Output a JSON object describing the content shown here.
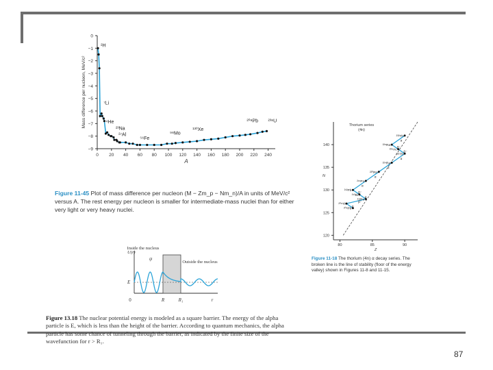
{
  "page_number": "87",
  "chart_data": [
    {
      "type": "scatter",
      "ylabel": "Mass difference per nucleon, MeV/c²",
      "xlabel": "A",
      "x_ticks": [
        "0",
        "20",
        "40",
        "60",
        "80",
        "100",
        "120",
        "140",
        "160",
        "180",
        "200",
        "220",
        "240"
      ],
      "y_ticks": [
        "0",
        "−1",
        "−2",
        "−3",
        "−4",
        "−5",
        "−6",
        "−7",
        "−8",
        "−9"
      ],
      "xlim": [
        0,
        250
      ],
      "ylim": [
        -9,
        0
      ],
      "x": [
        1,
        2,
        3,
        4,
        6,
        7,
        9,
        10,
        12,
        14,
        16,
        19,
        20,
        23,
        24,
        27,
        28,
        31,
        32,
        40,
        45,
        50,
        56,
        60,
        70,
        80,
        90,
        98,
        105,
        110,
        120,
        130,
        140,
        150,
        160,
        170,
        180,
        190,
        200,
        208,
        215,
        225,
        232,
        238
      ],
      "y": [
        -1.0,
        -1.5,
        -2.6,
        -6.4,
        -6.2,
        -6.4,
        -6.6,
        -6.8,
        -7.8,
        -7.7,
        -7.9,
        -8.0,
        -8.0,
        -8.1,
        -8.3,
        -8.3,
        -8.4,
        -8.5,
        -8.5,
        -8.5,
        -8.6,
        -8.6,
        -8.7,
        -8.7,
        -8.7,
        -8.7,
        -8.7,
        -8.6,
        -8.6,
        -8.55,
        -8.5,
        -8.45,
        -8.4,
        -8.3,
        -8.25,
        -8.2,
        -8.1,
        -8.0,
        -7.95,
        -7.9,
        -7.85,
        -7.75,
        -7.65,
        -7.6
      ],
      "annotations": [
        {
          "text": "²H",
          "x": 3,
          "y": -1.0
        },
        {
          "text": "⁷Li",
          "x": 7,
          "y": -5.6
        },
        {
          "text": "⁴He",
          "x": 10,
          "y": -7.1
        },
        {
          "text": "²³Na",
          "x": 24,
          "y": -7.6
        },
        {
          "text": "²⁷Al",
          "x": 28,
          "y": -8.1
        },
        {
          "text": "⁵⁶Fe",
          "x": 58,
          "y": -8.4
        },
        {
          "text": "⁹⁸Mo",
          "x": 100,
          "y": -8.0
        },
        {
          "text": "¹³⁰Xe",
          "x": 132,
          "y": -7.7
        },
        {
          "text": "²⁰⁸Pb",
          "x": 208,
          "y": -7.0
        },
        {
          "text": "²³⁸U",
          "x": 238,
          "y": -7.0
        }
      ]
    },
    {
      "type": "line",
      "title": "Thorium series",
      "subtitle": "(4n)",
      "xlabel": "Z",
      "ylabel": "N",
      "x_ticks": [
        "80",
        "85",
        "90"
      ],
      "y_ticks": [
        "120",
        "125",
        "130",
        "135",
        "140"
      ],
      "xlim": [
        79,
        92
      ],
      "ylim": [
        119,
        145
      ],
      "x": [
        90,
        88,
        89,
        90,
        88,
        86,
        84,
        82,
        83,
        84,
        81,
        82
      ],
      "y": [
        142,
        140,
        139,
        138,
        136,
        134,
        132,
        130,
        129,
        128,
        127,
        126
      ],
      "annotations": [
        {
          "text": "²³²Th",
          "x": 90,
          "y": 142
        },
        {
          "text": "²²⁸Ra",
          "x": 88,
          "y": 140
        },
        {
          "text": "²²⁸Ac",
          "x": 89,
          "y": 139
        },
        {
          "text": "²²⁸Th",
          "x": 90,
          "y": 138
        },
        {
          "text": "²²⁴Ra",
          "x": 88,
          "y": 136
        },
        {
          "text": "²²⁰Rn",
          "x": 86,
          "y": 134
        },
        {
          "text": "²¹⁶Po",
          "x": 84,
          "y": 132
        },
        {
          "text": "²¹²Pb",
          "x": 82,
          "y": 130
        },
        {
          "text": "²¹²Bi",
          "x": 83,
          "y": 129
        },
        {
          "text": "²¹²Po",
          "x": 84,
          "y": 128
        },
        {
          "text": "²⁰⁸Tl",
          "x": 81,
          "y": 127
        },
        {
          "text": "²⁰⁸Pb",
          "x": 82,
          "y": 126
        }
      ],
      "step_labels": [
        "α",
        "β⁻",
        "β⁻",
        "α",
        "α",
        "α",
        "α",
        "β⁻",
        "α",
        "β⁻",
        "α",
        "β⁻"
      ]
    },
    {
      "type": "line",
      "ylabel": "U(r)",
      "x_ticks": [
        "0",
        "R",
        "R₁",
        "r"
      ],
      "annotations": [
        {
          "text": "Inside the nucleus"
        },
        {
          "text": "ψ"
        },
        {
          "text": "Outside the nucleus"
        },
        {
          "text": "E"
        }
      ]
    }
  ],
  "captions": {
    "fig_11_45": {
      "label": "Figure 11-45",
      "text": "Plot of mass difference per nucleon (M − Zm_p − Nm_n)/A in units of MeV/c² versus A. The rest energy per nucleon is smaller for intermediate-mass nuclei than for either very light or very heavy nuclei."
    },
    "fig_11_18": {
      "label": "Figure 11-18",
      "text": "The thorium (4n) α decay series. The broken line is the line of stability (floor of the energy valley) shown in Figures 11-8 and 11-15."
    },
    "fig_13_18": {
      "label": "Figure 13.18",
      "text": "The nuclear potential energy is modeled as a square barrier. The energy of the alpha particle is E, which is less than the height of the barrier. According to quantum mechanics, the alpha particle has some chance of tunneling through the barrier, as indicated by the finite size of the wavefunction for r > R₁."
    }
  },
  "colors": {
    "curve": "#2aa3d8",
    "caption_label": "#2a8fc4",
    "frame": "#6e6e6e"
  }
}
